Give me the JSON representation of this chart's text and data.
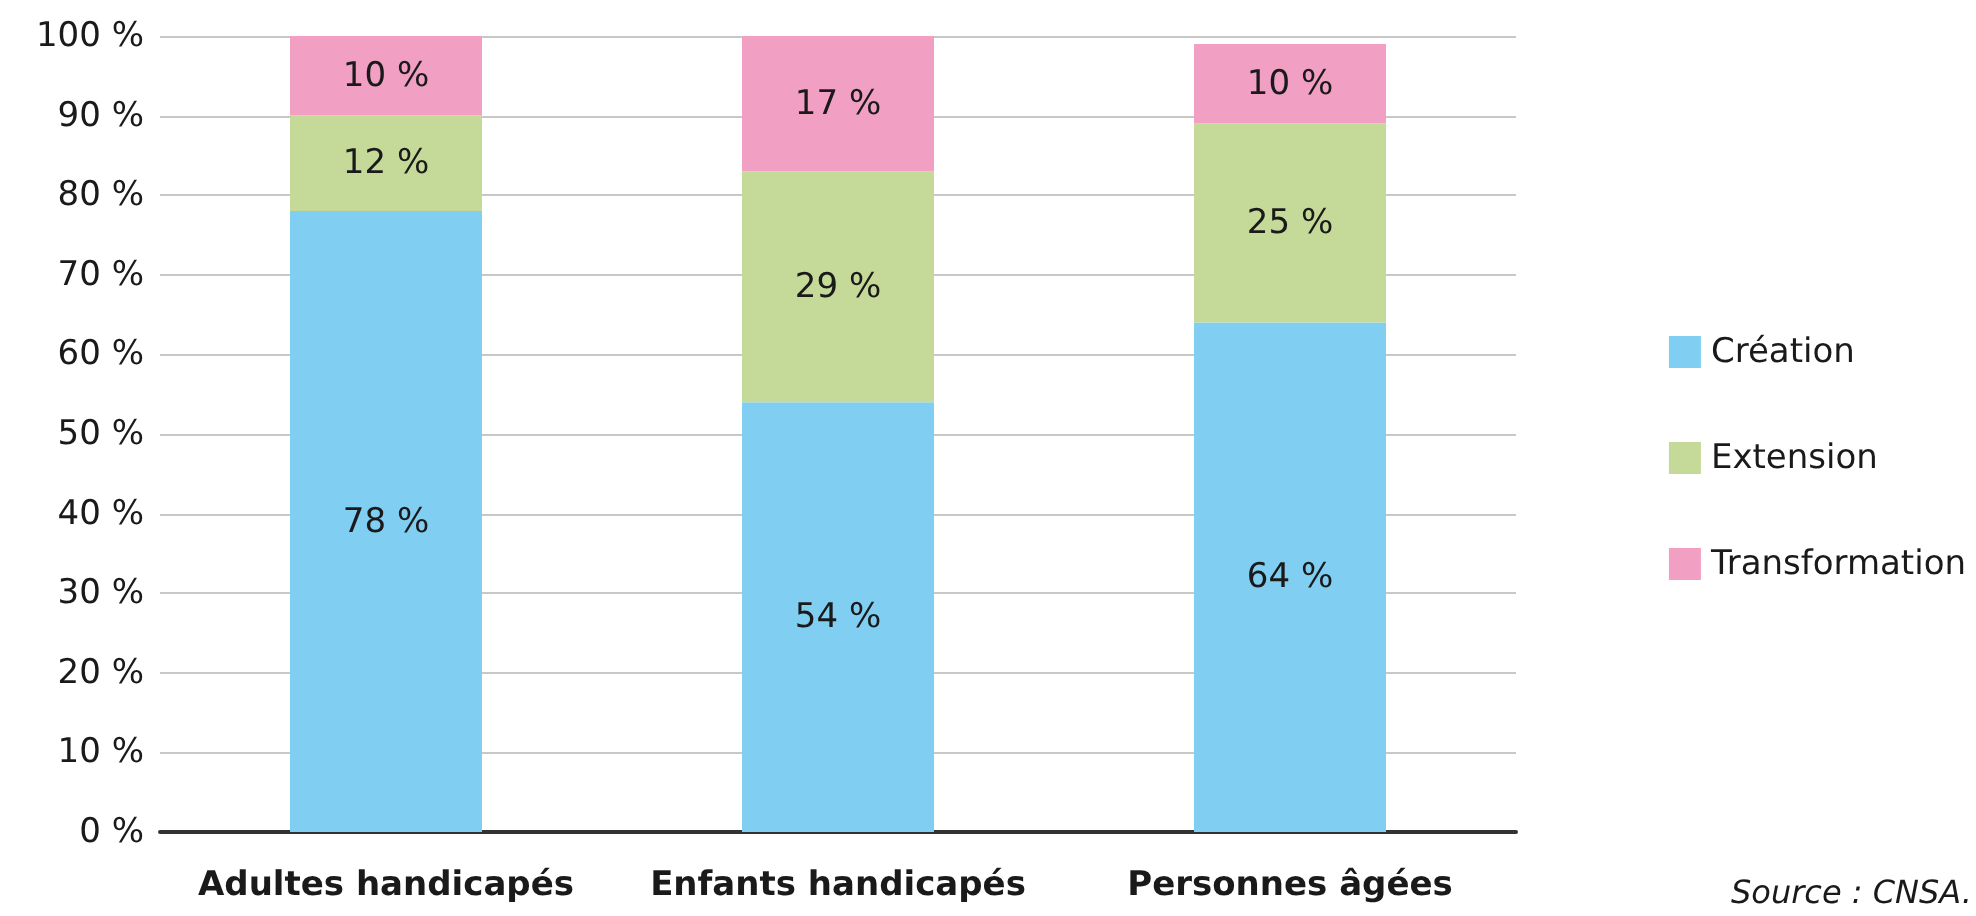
{
  "chart_data": {
    "type": "bar",
    "stacked": true,
    "categories": [
      "Adultes handicapés",
      "Enfants handicapés",
      "Personnes âgées"
    ],
    "series": [
      {
        "name": "Création",
        "color": "#80cff3",
        "values": [
          78,
          54,
          64
        ],
        "value_labels": [
          "78 %",
          "54 %",
          "64 %"
        ]
      },
      {
        "name": "Extension",
        "color": "#c5da99",
        "values": [
          12,
          29,
          25
        ],
        "value_labels": [
          "12 %",
          "29 %",
          "25 %"
        ]
      },
      {
        "name": "Transformation",
        "color": "#f29fc4",
        "values": [
          10,
          17,
          10
        ],
        "value_labels": [
          "10 %",
          "17 %",
          "10 %"
        ]
      }
    ],
    "ylim": [
      0,
      100
    ],
    "yticks": [
      {
        "value": 0,
        "label": "0 %"
      },
      {
        "value": 10,
        "label": "10 %"
      },
      {
        "value": 20,
        "label": "20 %"
      },
      {
        "value": 30,
        "label": "30 %"
      },
      {
        "value": 40,
        "label": "40 %"
      },
      {
        "value": 50,
        "label": "50 %"
      },
      {
        "value": 60,
        "label": "60 %"
      },
      {
        "value": 70,
        "label": "70 %"
      },
      {
        "value": 80,
        "label": "80 %"
      },
      {
        "value": 90,
        "label": "90 %"
      },
      {
        "value": 100,
        "label": "100 %"
      }
    ],
    "grid": "y",
    "legend": "right",
    "annotations": [
      "Source : CNSA."
    ]
  }
}
